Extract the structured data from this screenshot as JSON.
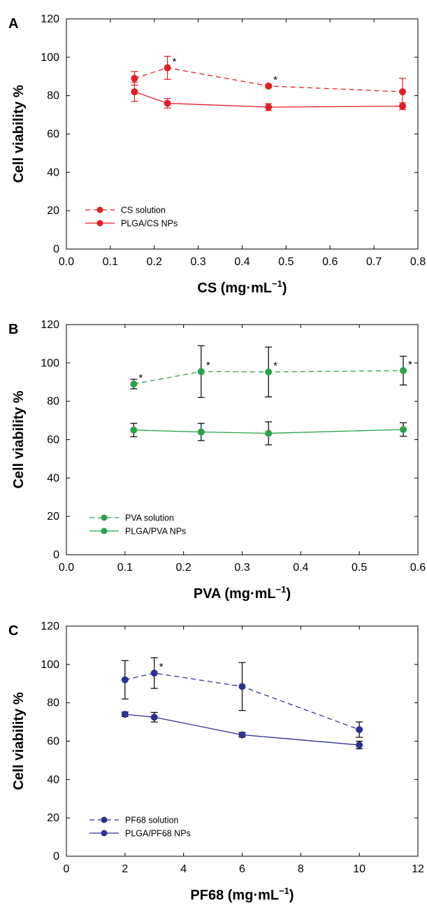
{
  "chart_data": [
    {
      "panel": "A",
      "type": "line",
      "xlabel": "CS (mg·mL",
      "xlabel_unit_sup": "−1",
      "xlabel_close": ")",
      "ylabel": "Cell viability %",
      "xlim": [
        0.0,
        0.8
      ],
      "ylim": [
        0,
        120
      ],
      "xticks": [
        "0.0",
        "0.1",
        "0.2",
        "0.3",
        "0.4",
        "0.5",
        "0.6",
        "0.7",
        "0.8"
      ],
      "yticks": [
        "0",
        "20",
        "40",
        "60",
        "80",
        "100",
        "120"
      ],
      "legend_position": "bottom-left",
      "grid": false,
      "series": [
        {
          "name": "CS solution",
          "style": "dashed",
          "color": "#e31e25",
          "error_bar_color": "#e31e25",
          "x": [
            0.155,
            0.23,
            0.46,
            0.765
          ],
          "y": [
            89,
            94.5,
            85,
            82
          ],
          "err": [
            3.5,
            6,
            0.8,
            7
          ],
          "significant": [
            false,
            true,
            true,
            false
          ]
        },
        {
          "name": "PLGA/CS NPs",
          "style": "solid",
          "color": "#e31e25",
          "error_bar_color": "#e31e25",
          "x": [
            0.155,
            0.23,
            0.46,
            0.765
          ],
          "y": [
            82,
            76,
            74,
            74.5
          ],
          "err": [
            5,
            2.5,
            1.8,
            1.8
          ],
          "significant": [
            false,
            false,
            false,
            false
          ]
        }
      ]
    },
    {
      "panel": "B",
      "type": "line",
      "xlabel": "PVA (mg·mL",
      "xlabel_unit_sup": "−1",
      "xlabel_close": ")",
      "ylabel": "Cell viability %",
      "xlim": [
        0.0,
        0.6
      ],
      "ylim": [
        0,
        120
      ],
      "xticks": [
        "0.0",
        "0.1",
        "0.2",
        "0.3",
        "0.4",
        "0.5",
        "0.6"
      ],
      "yticks": [
        "0",
        "20",
        "40",
        "60",
        "80",
        "100",
        "120"
      ],
      "legend_position": "bottom-left",
      "grid": false,
      "series": [
        {
          "name": "PVA solution",
          "style": "dashed",
          "color": "#2ba249",
          "error_bar_color": "#000000",
          "x": [
            0.115,
            0.23,
            0.345,
            0.575
          ],
          "y": [
            89,
            95.5,
            95.3,
            96
          ],
          "err": [
            2.5,
            13.5,
            13,
            7.5
          ],
          "significant": [
            true,
            true,
            true,
            true
          ]
        },
        {
          "name": "PLGA/PVA NPs",
          "style": "solid",
          "color": "#2ba249",
          "error_bar_color": "#000000",
          "x": [
            0.115,
            0.23,
            0.345,
            0.575
          ],
          "y": [
            65,
            64,
            63.3,
            65.3
          ],
          "err": [
            3.5,
            4.5,
            6,
            3.5
          ],
          "significant": [
            false,
            false,
            false,
            false
          ]
        }
      ]
    },
    {
      "panel": "C",
      "type": "line",
      "xlabel": "PF68 (mg·mL",
      "xlabel_unit_sup": "−1",
      "xlabel_close": ")",
      "ylabel": "Cell viability %",
      "xlim": [
        0,
        12
      ],
      "ylim": [
        0,
        120
      ],
      "xticks": [
        "0",
        "2",
        "4",
        "6",
        "8",
        "10",
        "12"
      ],
      "yticks": [
        "0",
        "20",
        "40",
        "60",
        "80",
        "100",
        "120"
      ],
      "legend_position": "bottom-left",
      "grid": false,
      "series": [
        {
          "name": "PF68 solution",
          "style": "dashed",
          "color": "#2e3092",
          "error_bar_color": "#000000",
          "x": [
            2,
            3,
            6,
            10
          ],
          "y": [
            92,
            95.5,
            88.5,
            66
          ],
          "err": [
            10,
            8,
            12.5,
            4
          ],
          "significant": [
            false,
            true,
            false,
            false
          ]
        },
        {
          "name": "PLGA/PF68 NPs",
          "style": "solid",
          "color": "#2e3092",
          "error_bar_color": "#000000",
          "x": [
            2,
            3,
            6,
            10
          ],
          "y": [
            74,
            72.5,
            63.3,
            58
          ],
          "err": [
            1.2,
            2.5,
            1.2,
            2
          ],
          "significant": [
            false,
            false,
            false,
            false
          ]
        }
      ]
    }
  ],
  "significance_marker": "*"
}
